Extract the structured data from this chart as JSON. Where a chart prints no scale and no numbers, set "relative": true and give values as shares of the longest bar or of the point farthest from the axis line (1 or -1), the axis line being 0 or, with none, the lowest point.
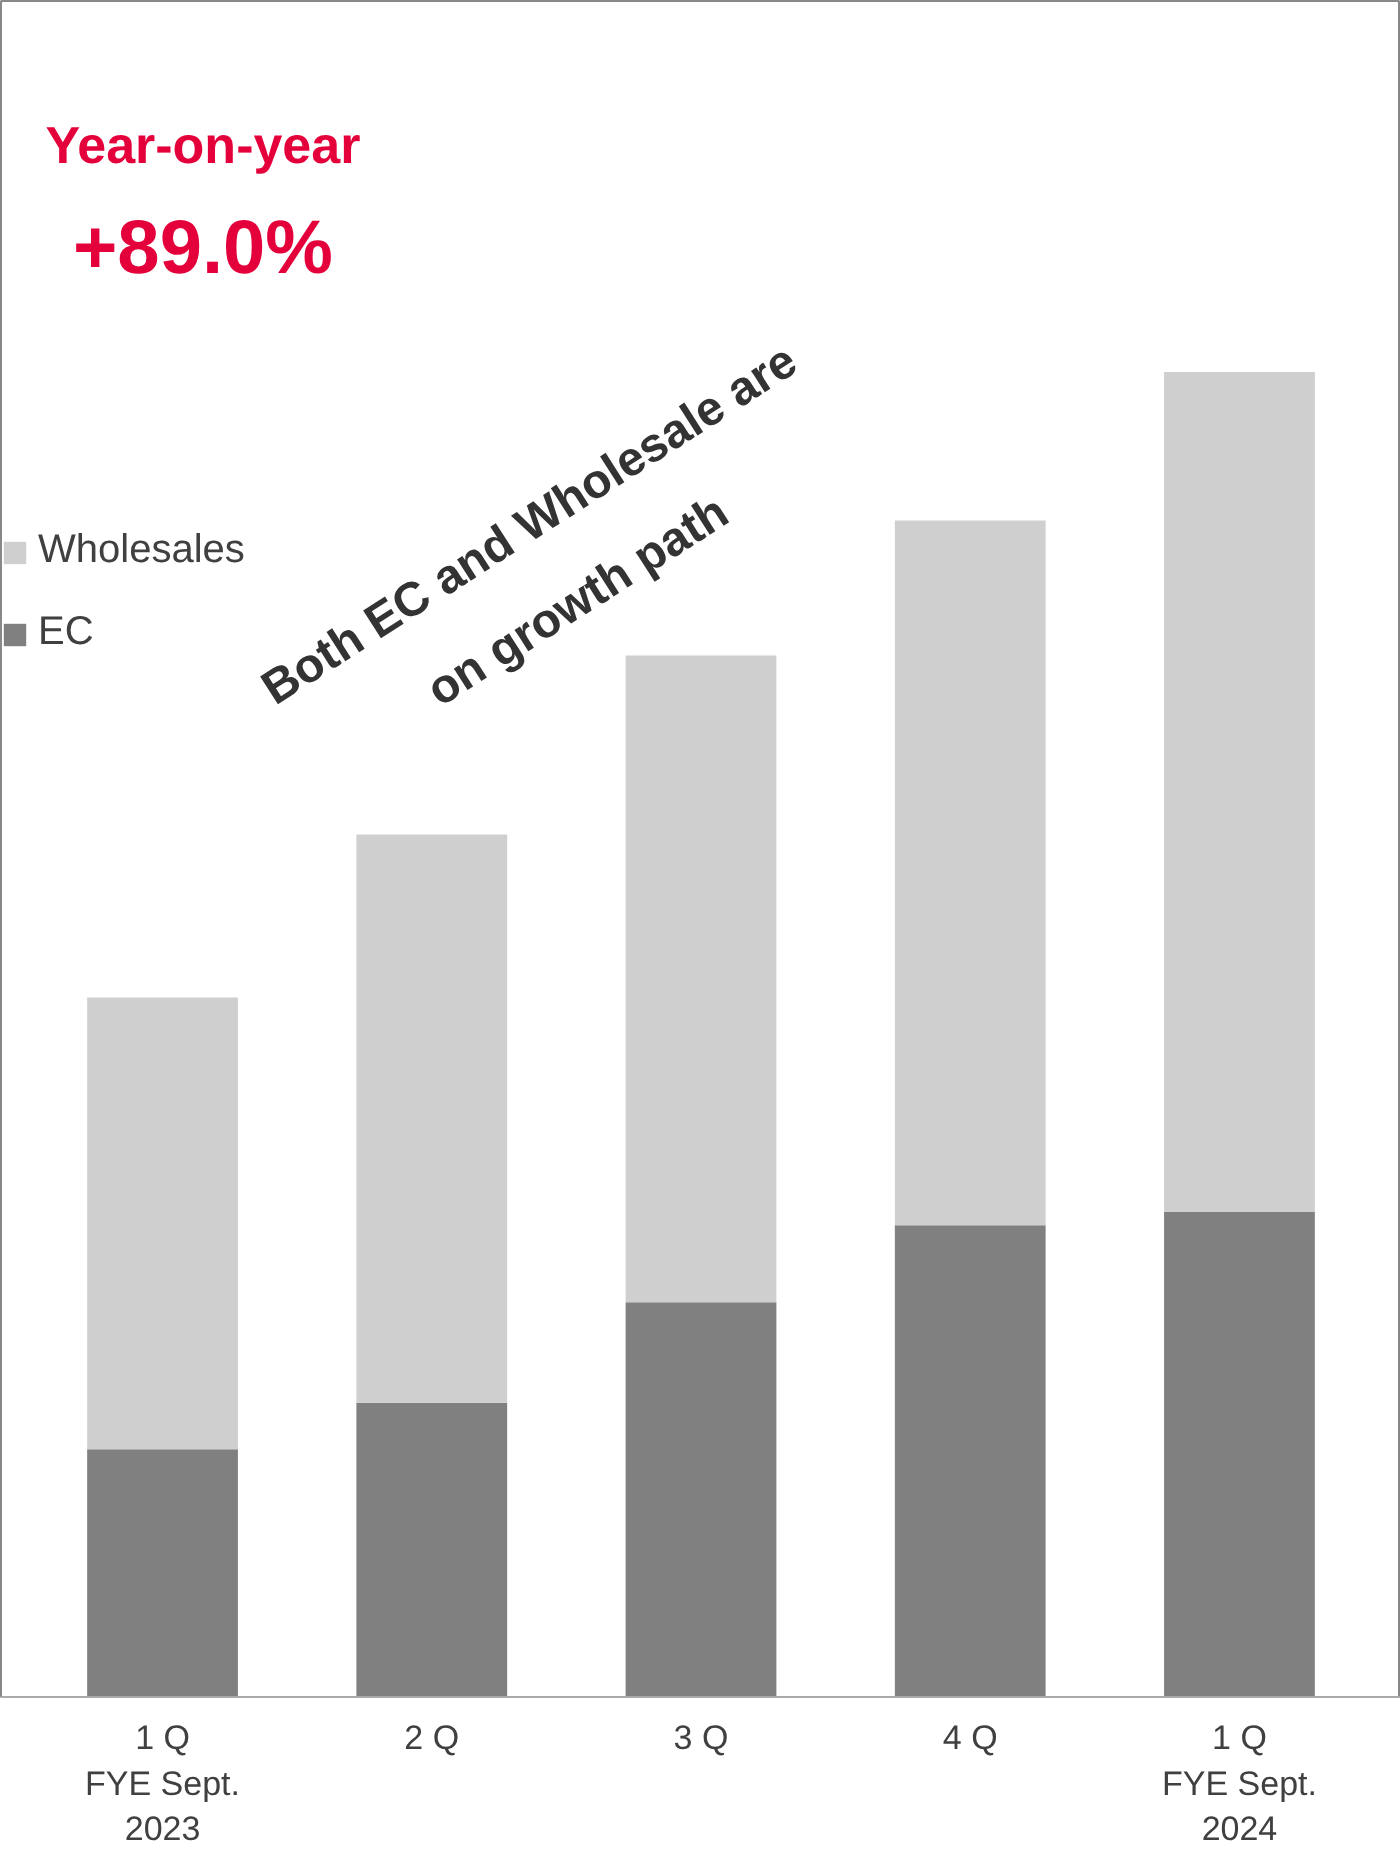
{
  "chart_data": {
    "type": "bar",
    "stacked": true,
    "relative": true,
    "categories": [
      "1 Q\nFYE Sept.\n2023",
      "2 Q",
      "3 Q",
      "4 Q",
      "1 Q\nFYE Sept.\n2024"
    ],
    "series": [
      {
        "name": "EC",
        "color": "#808080",
        "values": [
          0.187,
          0.222,
          0.298,
          0.356,
          0.366
        ]
      },
      {
        "name": "Wholesales",
        "color": "#d0cfd0",
        "values": [
          0.341,
          0.429,
          0.488,
          0.532,
          0.634
        ]
      }
    ],
    "legend": "top left",
    "grid": false,
    "annotations": [
      "Year-on-year\n+89.0%",
      "Both EC and Wholesale are\non growth path"
    ]
  }
}
